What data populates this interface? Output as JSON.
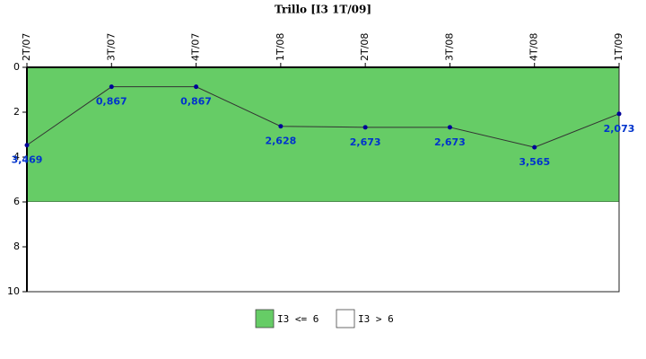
{
  "chart_data": {
    "type": "line",
    "title": "Trillo [I3 1T/09]",
    "categories": [
      "2T/07",
      "3T/07",
      "4T/07",
      "1T/08",
      "2T/08",
      "3T/08",
      "4T/08",
      "1T/09"
    ],
    "values": [
      3.469,
      0.867,
      0.867,
      2.628,
      2.673,
      2.673,
      3.565,
      2.073
    ],
    "value_labels": [
      "3,469",
      "0,867",
      "0,867",
      "2,628",
      "2,673",
      "2,673",
      "3,565",
      "2,073"
    ],
    "line_color": "#333333",
    "marker_color": "#000099",
    "ylim": [
      0,
      10
    ],
    "yticks": [
      0,
      2,
      4,
      6,
      8,
      10
    ],
    "y_inverted": true,
    "bands": [
      {
        "name": "I3 <= 6",
        "from": 0,
        "to": 6,
        "color": "#66cc66"
      },
      {
        "name": "I3 > 6",
        "from": 6,
        "to": 10,
        "color": "#ffffff"
      }
    ]
  }
}
